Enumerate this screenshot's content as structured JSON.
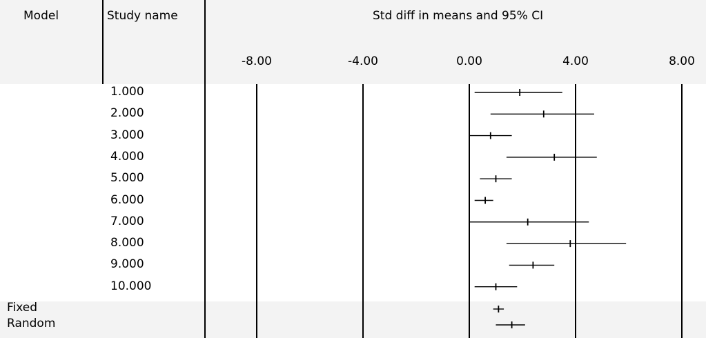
{
  "header": {
    "model_label": "Model",
    "study_label": "Study name",
    "effect_label": "Std diff in means and 95% CI"
  },
  "chart_data": {
    "type": "forest",
    "title": "Std diff in means and 95% CI",
    "xlim": [
      -8,
      8
    ],
    "ticks": [
      -8,
      -4,
      0,
      4,
      8
    ],
    "tick_labels": [
      "-8.00",
      "-4.00",
      "0.00",
      "4.00",
      "8.00"
    ],
    "studies": [
      {
        "name": "1.000",
        "estimate": 1.9,
        "lower": 0.2,
        "upper": 3.5
      },
      {
        "name": "2.000",
        "estimate": 2.8,
        "lower": 0.8,
        "upper": 4.7
      },
      {
        "name": "3.000",
        "estimate": 0.8,
        "lower": 0.0,
        "upper": 1.6
      },
      {
        "name": "4.000",
        "estimate": 3.2,
        "lower": 1.4,
        "upper": 4.8
      },
      {
        "name": "5.000",
        "estimate": 1.0,
        "lower": 0.4,
        "upper": 1.6
      },
      {
        "name": "6.000",
        "estimate": 0.6,
        "lower": 0.2,
        "upper": 0.9
      },
      {
        "name": "7.000",
        "estimate": 2.2,
        "lower": 0.0,
        "upper": 4.5
      },
      {
        "name": "8.000",
        "estimate": 3.8,
        "lower": 1.4,
        "upper": 5.9
      },
      {
        "name": "9.000",
        "estimate": 2.4,
        "lower": 1.5,
        "upper": 3.2
      },
      {
        "name": "10.000",
        "estimate": 1.0,
        "lower": 0.2,
        "upper": 1.8
      }
    ],
    "summary": [
      {
        "name": "Fixed",
        "estimate": 1.1,
        "lower": 0.9,
        "upper": 1.3
      },
      {
        "name": "Random",
        "estimate": 1.6,
        "lower": 1.0,
        "upper": 2.1
      }
    ]
  }
}
